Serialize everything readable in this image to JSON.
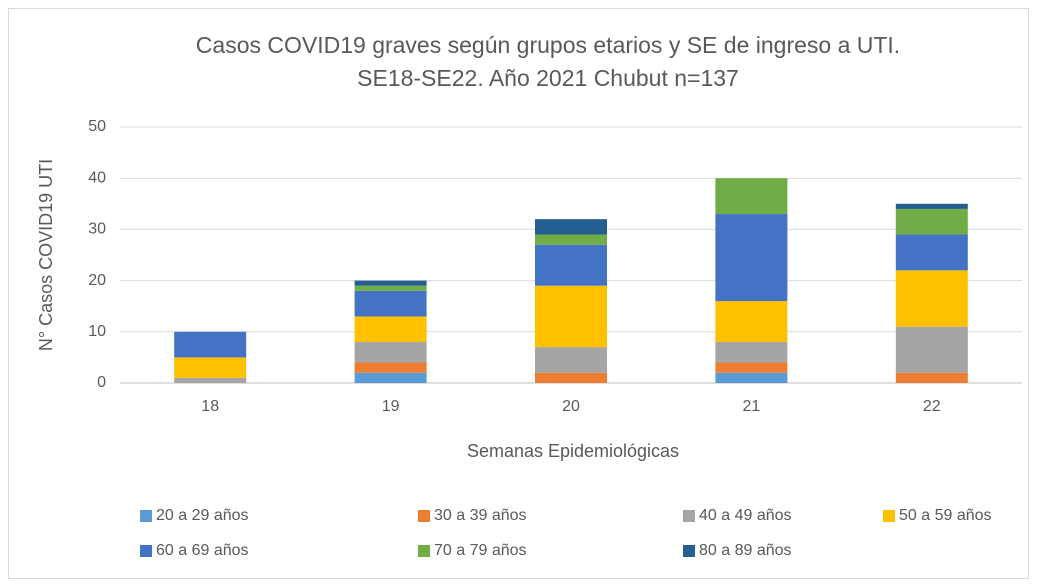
{
  "chart_data": {
    "type": "stacked_bar",
    "title": [
      "Casos COVID19 graves según grupos etarios y SE de ingreso a UTI.",
      "SE18-SE22. Año 2021 Chubut n=137"
    ],
    "x_label": "Semanas Epidemiológicas",
    "y_label": "N° Casos COVID19 UTI",
    "categories": [
      "18",
      "19",
      "20",
      "21",
      "22"
    ],
    "series": [
      {
        "name": "20 a 29 años",
        "color": "#5b9bd5",
        "values": [
          0,
          2,
          0,
          2,
          0
        ]
      },
      {
        "name": "30 a 39 años",
        "color": "#ed7d31",
        "values": [
          0,
          2,
          2,
          2,
          2
        ]
      },
      {
        "name": "40 a 49 años",
        "color": "#a5a5a5",
        "values": [
          1,
          4,
          5,
          4,
          9
        ]
      },
      {
        "name": "50 a 59 años",
        "color": "#ffc000",
        "values": [
          4,
          5,
          12,
          8,
          11
        ]
      },
      {
        "name": "60 a 69 años",
        "color": "#4472c4",
        "values": [
          5,
          5,
          8,
          17,
          7
        ]
      },
      {
        "name": "70 a 79 años",
        "color": "#70ad47",
        "values": [
          0,
          1,
          2,
          7,
          5
        ]
      },
      {
        "name": "80 a 89 años",
        "color": "#255e91",
        "values": [
          0,
          1,
          3,
          0,
          1
        ]
      }
    ],
    "ylim": [
      0,
      50
    ],
    "yticks": [
      0,
      10,
      20,
      30,
      40,
      50
    ],
    "grid": true,
    "legend": "bottom"
  }
}
